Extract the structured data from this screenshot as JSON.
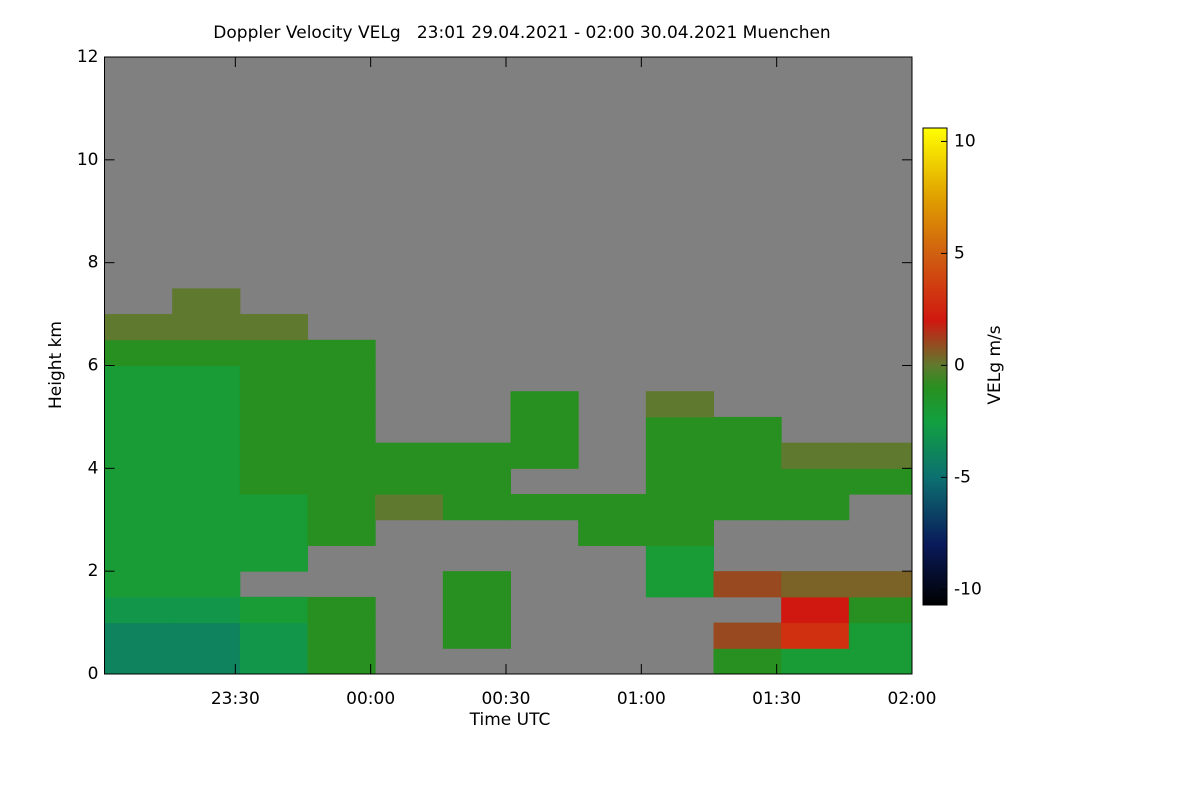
{
  "chart_data": {
    "type": "heatmap",
    "title": "Doppler Velocity VELg   23:01 29.04.2021 - 02:00 30.04.2021 Muenchen",
    "xlabel": "Time UTC",
    "ylabel": "Height km",
    "colorbar_label": "VELg m/s",
    "xlim": [
      1,
      180
    ],
    "ylim": [
      0,
      12
    ],
    "xticks": [
      {
        "value": 30,
        "label": "23:30"
      },
      {
        "value": 60,
        "label": "00:00"
      },
      {
        "value": 90,
        "label": "00:30"
      },
      {
        "value": 120,
        "label": "01:00"
      },
      {
        "value": 150,
        "label": "01:30"
      },
      {
        "value": 180,
        "label": "02:00"
      }
    ],
    "yticks": [
      0,
      2,
      4,
      6,
      8,
      10,
      12
    ],
    "clim": [
      -10.7,
      10.6
    ],
    "cticks": [
      -10,
      -5,
      0,
      5,
      10
    ],
    "background": "#808080",
    "colormap": [
      {
        "value": -10.7,
        "color": "#000000"
      },
      {
        "value": -8,
        "color": "#0a1a5a"
      },
      {
        "value": -5,
        "color": "#0c7070"
      },
      {
        "value": -2.5,
        "color": "#12a040"
      },
      {
        "value": -1,
        "color": "#289020"
      },
      {
        "value": 0,
        "color": "#5f7a2e"
      },
      {
        "value": 2,
        "color": "#d01810"
      },
      {
        "value": 5,
        "color": "#d06010"
      },
      {
        "value": 7.5,
        "color": "#e0a000"
      },
      {
        "value": 10.6,
        "color": "#ffff00"
      }
    ],
    "x_edges": [
      1,
      16,
      31,
      46,
      61,
      76,
      91,
      106,
      121,
      136,
      151,
      166,
      180
    ],
    "y_edges": [
      0,
      0.5,
      1,
      1.5,
      2,
      2.5,
      3,
      3.5,
      4,
      4.5,
      5,
      5.5,
      6,
      6.5,
      7,
      7.5,
      8
    ],
    "z": [
      [
        -4,
        -4,
        -3,
        -1,
        null,
        null,
        null,
        null,
        null,
        -1,
        -2,
        -2
      ],
      [
        -4,
        -4,
        -3,
        -1,
        null,
        -1,
        null,
        null,
        null,
        1,
        3,
        -2
      ],
      [
        -3,
        -3,
        -2,
        -1,
        null,
        -1,
        null,
        null,
        null,
        null,
        2,
        -1
      ],
      [
        -2,
        -2,
        null,
        null,
        null,
        -1,
        null,
        null,
        -2,
        1,
        0.5,
        0.5
      ],
      [
        -2,
        -2,
        -2,
        null,
        null,
        null,
        null,
        null,
        -2,
        null,
        null,
        null
      ],
      [
        -2,
        -2,
        -2,
        -1,
        null,
        null,
        null,
        -1,
        -1,
        null,
        null,
        null
      ],
      [
        -2,
        -2,
        -2,
        -1,
        0,
        -1,
        -1,
        -1,
        -1,
        -1,
        -1,
        null
      ],
      [
        -2,
        -2,
        -1,
        -1,
        -1,
        -1,
        null,
        null,
        -1,
        -1,
        -1,
        -1
      ],
      [
        -2,
        -2,
        -1,
        -1,
        -1,
        -1,
        -1,
        null,
        -1,
        -1,
        0,
        0
      ],
      [
        -2,
        -2,
        -1,
        -1,
        null,
        null,
        -1,
        null,
        -1,
        -1,
        null,
        null
      ],
      [
        -2,
        -2,
        -1,
        -1,
        null,
        null,
        -1,
        null,
        0,
        null,
        null,
        null
      ],
      [
        -2,
        -2,
        -1,
        -1,
        null,
        null,
        null,
        null,
        null,
        null,
        null,
        null
      ],
      [
        -1,
        -1,
        -1,
        -1,
        null,
        null,
        null,
        null,
        null,
        null,
        null,
        null
      ],
      [
        0,
        0,
        0,
        null,
        null,
        null,
        null,
        null,
        null,
        null,
        null,
        null
      ],
      [
        null,
        0,
        null,
        null,
        null,
        null,
        null,
        null,
        null,
        null,
        null,
        null
      ],
      [
        null,
        null,
        null,
        null,
        null,
        null,
        null,
        null,
        null,
        null,
        null,
        null
      ]
    ]
  }
}
